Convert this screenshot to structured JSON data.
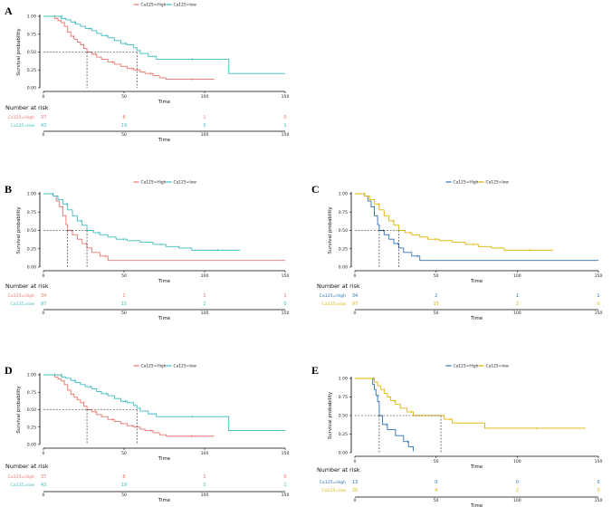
{
  "chart_data": [
    {
      "type": "line",
      "panel": "A",
      "xlabel": "Time",
      "ylabel": "Survival probability",
      "xlim": [
        0,
        150
      ],
      "ylim": [
        0,
        1
      ],
      "xticks": [
        0,
        50,
        100,
        150
      ],
      "yticks": [
        "0.00",
        "0.25",
        "0.50",
        "0.75",
        "1.00"
      ],
      "legend": [
        "Ca125=High",
        "Ca125=low"
      ],
      "colors": [
        "#e8736c",
        "#3bbcc0"
      ],
      "median_x": [
        27,
        58
      ],
      "series": [
        {
          "name": "Ca125=High",
          "points": [
            [
              0,
              1
            ],
            [
              5,
              1
            ],
            [
              7,
              0.97
            ],
            [
              9,
              0.94
            ],
            [
              11,
              0.91
            ],
            [
              13,
              0.86
            ],
            [
              15,
              0.78
            ],
            [
              17,
              0.72
            ],
            [
              19,
              0.68
            ],
            [
              21,
              0.64
            ],
            [
              23,
              0.6
            ],
            [
              25,
              0.55
            ],
            [
              27,
              0.5
            ],
            [
              30,
              0.47
            ],
            [
              33,
              0.43
            ],
            [
              36,
              0.4
            ],
            [
              40,
              0.36
            ],
            [
              44,
              0.33
            ],
            [
              48,
              0.3
            ],
            [
              52,
              0.27
            ],
            [
              56,
              0.25
            ],
            [
              60,
              0.22
            ],
            [
              63,
              0.2
            ],
            [
              68,
              0.17
            ],
            [
              72,
              0.14
            ],
            [
              76,
              0.12
            ],
            [
              106,
              0.12
            ]
          ]
        },
        {
          "name": "Ca125=low",
          "points": [
            [
              0,
              1
            ],
            [
              10,
              1
            ],
            [
              11,
              0.97
            ],
            [
              14,
              0.95
            ],
            [
              17,
              0.92
            ],
            [
              20,
              0.89
            ],
            [
              23,
              0.86
            ],
            [
              26,
              0.83
            ],
            [
              30,
              0.8
            ],
            [
              33,
              0.76
            ],
            [
              36,
              0.73
            ],
            [
              40,
              0.7
            ],
            [
              44,
              0.66
            ],
            [
              48,
              0.62
            ],
            [
              52,
              0.6
            ],
            [
              56,
              0.56
            ],
            [
              58,
              0.52
            ],
            [
              60,
              0.48
            ],
            [
              65,
              0.44
            ],
            [
              70,
              0.4
            ],
            [
              113,
              0.4
            ],
            [
              115,
              0.2
            ],
            [
              150,
              0.2
            ]
          ]
        }
      ],
      "risk_table": {
        "title": "Number at risk",
        "rows": [
          {
            "label": "Ca125=High",
            "values": [
              "37",
              "8",
              "1",
              "0"
            ]
          },
          {
            "label": "Ca125=low",
            "values": [
              "43",
              "19",
              "5",
              "1"
            ]
          }
        ],
        "xlabel": "Time"
      }
    },
    {
      "type": "line",
      "panel": "B",
      "xlabel": "Time",
      "ylabel": "Survival probability",
      "xlim": [
        0,
        150
      ],
      "ylim": [
        0,
        1
      ],
      "xticks": [
        0,
        50,
        100,
        150
      ],
      "yticks": [
        "0.00",
        "0.25",
        "0.50",
        "0.75",
        "1.00"
      ],
      "legend": [
        "Ca125=High",
        "Ca125=low"
      ],
      "colors": [
        "#e8736c",
        "#3bbcc0"
      ],
      "median_x": [
        15,
        27
      ],
      "series": [
        {
          "name": "Ca125=High",
          "points": [
            [
              0,
              1
            ],
            [
              4,
              1
            ],
            [
              6,
              0.97
            ],
            [
              8,
              0.9
            ],
            [
              10,
              0.82
            ],
            [
              12,
              0.7
            ],
            [
              14,
              0.58
            ],
            [
              15,
              0.5
            ],
            [
              18,
              0.44
            ],
            [
              21,
              0.38
            ],
            [
              24,
              0.32
            ],
            [
              27,
              0.26
            ],
            [
              30,
              0.2
            ],
            [
              35,
              0.15
            ],
            [
              40,
              0.09
            ],
            [
              150,
              0.09
            ]
          ]
        },
        {
          "name": "Ca125=low",
          "points": [
            [
              0,
              1
            ],
            [
              4,
              1
            ],
            [
              6,
              0.97
            ],
            [
              9,
              0.92
            ],
            [
              12,
              0.86
            ],
            [
              15,
              0.78
            ],
            [
              18,
              0.7
            ],
            [
              21,
              0.63
            ],
            [
              24,
              0.57
            ],
            [
              27,
              0.5
            ],
            [
              31,
              0.47
            ],
            [
              35,
              0.44
            ],
            [
              40,
              0.41
            ],
            [
              45,
              0.38
            ],
            [
              52,
              0.36
            ],
            [
              60,
              0.34
            ],
            [
              68,
              0.31
            ],
            [
              76,
              0.28
            ],
            [
              84,
              0.26
            ],
            [
              92,
              0.23
            ],
            [
              122,
              0.23
            ]
          ]
        }
      ],
      "risk_table": {
        "title": "Number at risk",
        "rows": [
          {
            "label": "Ca125=High",
            "values": [
              "34",
              "2",
              "1",
              "1"
            ]
          },
          {
            "label": "Ca125=low",
            "values": [
              "97",
              "15",
              "2",
              "0"
            ]
          }
        ],
        "xlabel": "Time"
      }
    },
    {
      "type": "line",
      "panel": "C",
      "xlabel": "Time",
      "ylabel": "Survival probability",
      "xlim": [
        0,
        150
      ],
      "ylim": [
        0,
        1
      ],
      "xticks": [
        0,
        50,
        100,
        150
      ],
      "yticks": [
        "0.00",
        "0.25",
        "0.50",
        "0.75",
        "1.00"
      ],
      "legend": [
        "Ca125=High",
        "Ca125=low"
      ],
      "colors": [
        "#2d6fb4",
        "#e0b400"
      ],
      "median_x": [
        15,
        27
      ],
      "series": [
        {
          "name": "Ca125=High",
          "points": [
            [
              0,
              1
            ],
            [
              4,
              1
            ],
            [
              6,
              0.97
            ],
            [
              8,
              0.9
            ],
            [
              10,
              0.82
            ],
            [
              12,
              0.7
            ],
            [
              14,
              0.58
            ],
            [
              15,
              0.5
            ],
            [
              18,
              0.44
            ],
            [
              21,
              0.38
            ],
            [
              24,
              0.32
            ],
            [
              27,
              0.26
            ],
            [
              30,
              0.2
            ],
            [
              35,
              0.15
            ],
            [
              40,
              0.09
            ],
            [
              150,
              0.09
            ]
          ]
        },
        {
          "name": "Ca125=low",
          "points": [
            [
              0,
              1
            ],
            [
              4,
              1
            ],
            [
              6,
              0.97
            ],
            [
              9,
              0.92
            ],
            [
              12,
              0.86
            ],
            [
              15,
              0.78
            ],
            [
              18,
              0.7
            ],
            [
              21,
              0.63
            ],
            [
              24,
              0.57
            ],
            [
              27,
              0.5
            ],
            [
              31,
              0.47
            ],
            [
              35,
              0.44
            ],
            [
              40,
              0.41
            ],
            [
              45,
              0.38
            ],
            [
              52,
              0.36
            ],
            [
              60,
              0.34
            ],
            [
              68,
              0.31
            ],
            [
              76,
              0.28
            ],
            [
              84,
              0.26
            ],
            [
              92,
              0.23
            ],
            [
              122,
              0.23
            ]
          ]
        }
      ],
      "risk_table": {
        "title": "Number at risk",
        "rows": [
          {
            "label": "Ca125=High",
            "values": [
              "34",
              "2",
              "1",
              "1"
            ]
          },
          {
            "label": "Ca125=low",
            "values": [
              "97",
              "15",
              "2",
              "0"
            ]
          }
        ],
        "xlabel": "Time"
      }
    },
    {
      "type": "line",
      "panel": "D",
      "xlabel": "Time",
      "ylabel": "Survival probability",
      "xlim": [
        0,
        150
      ],
      "ylim": [
        0,
        1
      ],
      "xticks": [
        0,
        50,
        100,
        150
      ],
      "yticks": [
        "0.00",
        "0.25",
        "0.50",
        "0.75",
        "1.00"
      ],
      "legend": [
        "Ca125=High",
        "Ca125=low"
      ],
      "colors": [
        "#e8736c",
        "#3bbcc0"
      ],
      "median_x": [
        27,
        58
      ],
      "series": [
        {
          "name": "Ca125=High",
          "points": [
            [
              0,
              1
            ],
            [
              5,
              1
            ],
            [
              7,
              0.97
            ],
            [
              9,
              0.94
            ],
            [
              11,
              0.91
            ],
            [
              13,
              0.86
            ],
            [
              15,
              0.78
            ],
            [
              17,
              0.72
            ],
            [
              19,
              0.68
            ],
            [
              21,
              0.64
            ],
            [
              23,
              0.6
            ],
            [
              25,
              0.55
            ],
            [
              27,
              0.5
            ],
            [
              30,
              0.47
            ],
            [
              33,
              0.43
            ],
            [
              36,
              0.4
            ],
            [
              40,
              0.36
            ],
            [
              44,
              0.33
            ],
            [
              48,
              0.3
            ],
            [
              52,
              0.27
            ],
            [
              56,
              0.25
            ],
            [
              60,
              0.22
            ],
            [
              63,
              0.2
            ],
            [
              68,
              0.17
            ],
            [
              72,
              0.14
            ],
            [
              76,
              0.12
            ],
            [
              106,
              0.12
            ]
          ]
        },
        {
          "name": "Ca125=low",
          "points": [
            [
              0,
              1
            ],
            [
              10,
              1
            ],
            [
              11,
              0.97
            ],
            [
              14,
              0.95
            ],
            [
              17,
              0.92
            ],
            [
              20,
              0.89
            ],
            [
              23,
              0.86
            ],
            [
              26,
              0.83
            ],
            [
              30,
              0.8
            ],
            [
              33,
              0.76
            ],
            [
              36,
              0.73
            ],
            [
              40,
              0.7
            ],
            [
              44,
              0.66
            ],
            [
              48,
              0.62
            ],
            [
              52,
              0.6
            ],
            [
              56,
              0.56
            ],
            [
              58,
              0.52
            ],
            [
              60,
              0.48
            ],
            [
              65,
              0.44
            ],
            [
              70,
              0.4
            ],
            [
              113,
              0.4
            ],
            [
              115,
              0.2
            ],
            [
              150,
              0.2
            ]
          ]
        }
      ],
      "risk_table": {
        "title": "Number at risk",
        "rows": [
          {
            "label": "Ca125=High",
            "values": [
              "37",
              "8",
              "1",
              "0"
            ]
          },
          {
            "label": "Ca125=low",
            "values": [
              "43",
              "19",
              "5",
              "1"
            ]
          }
        ],
        "xlabel": "Time"
      }
    },
    {
      "type": "line",
      "panel": "E",
      "xlabel": "Time",
      "ylabel": "Survival probability",
      "xlim": [
        0,
        150
      ],
      "ylim": [
        0,
        1
      ],
      "xticks": [
        0,
        50,
        100,
        150
      ],
      "yticks": [
        "0.00",
        "0.25",
        "0.50",
        "0.75",
        "1.00"
      ],
      "legend": [
        "Ca125=High",
        "Ca125=low"
      ],
      "colors": [
        "#2d6fb4",
        "#e0b400"
      ],
      "median_x": [
        15,
        53
      ],
      "series": [
        {
          "name": "Ca125=High",
          "points": [
            [
              0,
              1
            ],
            [
              10,
              1
            ],
            [
              11,
              0.92
            ],
            [
              12,
              0.85
            ],
            [
              13,
              0.77
            ],
            [
              14,
              0.69
            ],
            [
              15,
              0.5
            ],
            [
              17,
              0.38
            ],
            [
              20,
              0.31
            ],
            [
              25,
              0.23
            ],
            [
              30,
              0.15
            ],
            [
              33,
              0.08
            ],
            [
              36,
              0.02
            ]
          ]
        },
        {
          "name": "Ca125=low",
          "points": [
            [
              0,
              1
            ],
            [
              10,
              1
            ],
            [
              12,
              0.95
            ],
            [
              14,
              0.9
            ],
            [
              16,
              0.85
            ],
            [
              18,
              0.8
            ],
            [
              20,
              0.75
            ],
            [
              22,
              0.7
            ],
            [
              25,
              0.65
            ],
            [
              28,
              0.6
            ],
            [
              32,
              0.55
            ],
            [
              36,
              0.5
            ],
            [
              53,
              0.5
            ],
            [
              55,
              0.45
            ],
            [
              60,
              0.4
            ],
            [
              75,
              0.4
            ],
            [
              80,
              0.33
            ],
            [
              142,
              0.33
            ]
          ]
        }
      ],
      "risk_table": {
        "title": "Number at risk",
        "rows": [
          {
            "label": "Ca125=High",
            "values": [
              "13",
              "0",
              "0",
              "0"
            ]
          },
          {
            "label": "Ca125=low",
            "values": [
              "20",
              "4",
              "2",
              "0"
            ]
          }
        ],
        "xlabel": "Time"
      }
    }
  ]
}
